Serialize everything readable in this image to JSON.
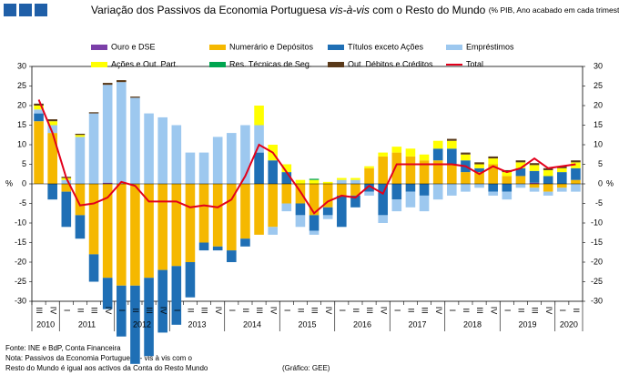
{
  "chart_data": {
    "type": "bar",
    "title": "Variação dos Passivos da Economia Portuguesa",
    "title_italic": "vis-à-vis",
    "title_rest": "com o Resto do Mundo",
    "title_note": "(% PIB, Ano acabado em cada trimestre)",
    "y_label": "%",
    "y2_label": "%",
    "categories": [
      "III",
      "IV",
      "I",
      "II",
      "III",
      "IV",
      "I",
      "II",
      "III",
      "IV",
      "I",
      "II",
      "III",
      "IV",
      "I",
      "II",
      "III",
      "IV",
      "I",
      "II",
      "III",
      "IV",
      "I",
      "II",
      "III",
      "IV",
      "I",
      "II",
      "III",
      "IV",
      "I",
      "II",
      "III",
      "IV",
      "I",
      "II",
      "III",
      "IV",
      "I",
      "II"
    ],
    "year_groups": [
      {
        "year": "2010",
        "quarters": 2
      },
      {
        "year": "2011",
        "quarters": 4
      },
      {
        "year": "2012",
        "quarters": 4
      },
      {
        "year": "2013",
        "quarters": 4
      },
      {
        "year": "2014",
        "quarters": 4
      },
      {
        "year": "2015",
        "quarters": 4
      },
      {
        "year": "2016",
        "quarters": 4
      },
      {
        "year": "2017",
        "quarters": 4
      },
      {
        "year": "2018",
        "quarters": 4
      },
      {
        "year": "2019",
        "quarters": 4
      },
      {
        "year": "2020",
        "quarters": 2
      }
    ],
    "ylim": [
      -30,
      30
    ],
    "yticks": [
      -30,
      -25,
      -20,
      -15,
      -10,
      -5,
      0,
      5,
      10,
      15,
      20,
      25,
      30
    ],
    "y2lim": [
      -30,
      30
    ],
    "y2ticks": [
      -30,
      -25,
      -20,
      -15,
      -10,
      -5,
      0,
      5,
      10,
      15,
      20,
      25,
      30
    ],
    "series": [
      {
        "name": "Ouro e DSE",
        "color": "#7b3fa8",
        "values": [
          0,
          0,
          0,
          0,
          0,
          0.3,
          0,
          0,
          0,
          0,
          0,
          0,
          0,
          0,
          0,
          0,
          0,
          0,
          0,
          0,
          0,
          0,
          0,
          0,
          0,
          0,
          0,
          0,
          0,
          0,
          0,
          0,
          0,
          0,
          0,
          0,
          0.3,
          0,
          0,
          0
        ]
      },
      {
        "name": "Numerário e Depósitos",
        "color": "#f5b800",
        "values": [
          16,
          13,
          -2,
          -8,
          -18,
          -24,
          -26,
          -26,
          -24,
          -22,
          -21,
          -20,
          -15,
          -16,
          -17,
          -14,
          -13,
          -11,
          -5,
          -5,
          -8,
          -6,
          -3,
          -3,
          4,
          7,
          8,
          7,
          6,
          6,
          5,
          3,
          3,
          5,
          2,
          2,
          -1,
          -2,
          -1,
          1
        ]
      },
      {
        "name": "Títulos exceto Ações",
        "color": "#1f6fb5",
        "values": [
          2,
          -4,
          -9,
          -6,
          -7,
          -8,
          -13,
          -20,
          -20,
          -16,
          -15,
          -9,
          -2,
          -1,
          -3,
          -2,
          8,
          6,
          3,
          -3,
          -4,
          -2,
          -8,
          -3,
          -2,
          -8,
          -4,
          -2,
          -3,
          3,
          4,
          3,
          1,
          -2,
          -2,
          2,
          3,
          2,
          3,
          3
        ]
      },
      {
        "name": "Empréstimos",
        "color": "#9dc8ef",
        "values": [
          1,
          2,
          1,
          12,
          18,
          25,
          26,
          22,
          18,
          17,
          15,
          8,
          8,
          12,
          13,
          15,
          7,
          -2,
          -2,
          -3,
          -1,
          -1,
          1,
          1,
          -1,
          -2,
          -3,
          -4,
          -4,
          -4,
          -3,
          -2,
          -1,
          -1,
          -2,
          -1,
          -1,
          -1,
          -1,
          -2
        ]
      },
      {
        "name": "Ações e Out. Part.",
        "color": "#ffff00",
        "values": [
          1,
          1,
          0.5,
          0.5,
          0,
          0,
          0,
          0,
          0,
          0,
          0,
          0,
          0,
          0,
          0,
          0,
          5,
          4,
          2,
          1,
          1,
          0.5,
          0.5,
          0.5,
          0.5,
          1,
          1.5,
          2,
          1.5,
          2,
          2,
          1.5,
          1,
          1.5,
          1,
          1.5,
          1.5,
          1.5,
          1,
          1.5
        ]
      },
      {
        "name": "Res. Técnicas de Seg.",
        "color": "#00a550",
        "values": [
          0,
          0,
          0,
          0,
          0,
          0,
          0,
          0,
          0,
          0,
          0,
          0,
          0,
          0,
          0,
          0,
          0,
          0,
          0,
          0,
          0.3,
          0,
          0,
          0,
          0,
          0,
          0,
          0,
          0,
          0,
          0,
          0,
          0,
          0,
          0,
          0,
          0,
          0,
          0,
          0
        ]
      },
      {
        "name": "Out. Débitos e Créditos",
        "color": "#5a3a1a",
        "values": [
          0.5,
          0.5,
          0.3,
          0.3,
          0.3,
          0.5,
          0.5,
          0.3,
          0,
          0,
          0,
          0,
          0,
          0,
          0,
          0,
          0,
          0,
          0,
          0,
          0,
          0,
          0,
          0,
          0,
          0,
          0,
          0,
          0,
          0,
          0.5,
          0.5,
          0.5,
          0.5,
          0.5,
          0.5,
          0.5,
          0.5,
          0.5,
          0.5
        ]
      },
      {
        "name": "Total",
        "color": "#e3001b",
        "type": "line",
        "values": [
          21.5,
          13,
          1.5,
          -5.5,
          -5,
          -3.5,
          0.5,
          -0.5,
          -4.5,
          -4.5,
          -4.5,
          -6,
          -5.5,
          -6,
          -4,
          2,
          10,
          8,
          3,
          -2,
          -7.5,
          -4.5,
          -3,
          -3.5,
          -0.5,
          -2.5,
          5,
          5,
          5,
          5,
          5,
          4.5,
          2.5,
          4.5,
          3,
          4,
          6.5,
          4,
          4.5,
          5
        ]
      }
    ],
    "footer": [
      "Fonte: INE e BdP, Conta Financeira",
      "Nota: Passivos da Economia Portuguesa - vis à vis com o",
      "Resto do Mundo é igual aos activos da Conta do Resto Mundo"
    ],
    "credit": "(Gráfico: GEE)"
  }
}
